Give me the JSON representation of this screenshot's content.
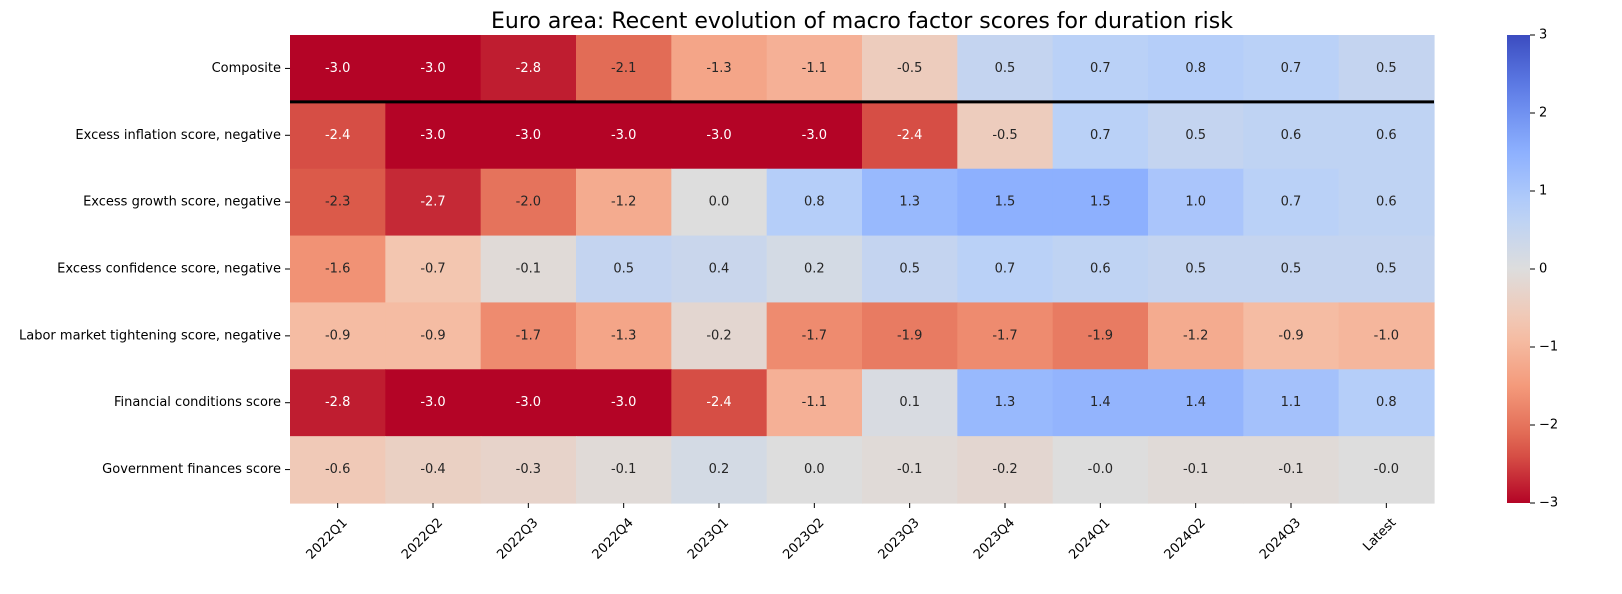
{
  "chart_data": {
    "type": "heatmap",
    "title": "Euro area: Recent evolution of macro factor scores for duration risk",
    "xlabel": "",
    "ylabel": "",
    "x_categories": [
      "2022Q1",
      "2022Q2",
      "2022Q3",
      "2022Q4",
      "2023Q1",
      "2023Q2",
      "2023Q3",
      "2023Q4",
      "2024Q1",
      "2024Q2",
      "2024Q3",
      "Latest"
    ],
    "y_categories": [
      "Composite",
      "Excess inflation score, negative",
      "Excess growth score, negative",
      "Excess confidence score, negative",
      "Labor market tightening score, negative",
      "Financial conditions score",
      "Government finances score"
    ],
    "values": [
      [
        -3.0,
        -3.0,
        -2.8,
        -2.1,
        -1.3,
        -1.1,
        -0.5,
        0.5,
        0.7,
        0.8,
        0.7,
        0.5
      ],
      [
        -2.4,
        -3.0,
        -3.0,
        -3.0,
        -3.0,
        -3.0,
        -2.4,
        -0.5,
        0.7,
        0.5,
        0.6,
        0.6
      ],
      [
        -2.3,
        -2.7,
        -2.0,
        -1.2,
        0.0,
        0.8,
        1.3,
        1.5,
        1.5,
        1.0,
        0.7,
        0.6
      ],
      [
        -1.6,
        -0.7,
        -0.1,
        0.5,
        0.4,
        0.2,
        0.5,
        0.7,
        0.6,
        0.5,
        0.5,
        0.5
      ],
      [
        -0.9,
        -0.9,
        -1.7,
        -1.3,
        -0.2,
        -1.7,
        -1.9,
        -1.7,
        -1.9,
        -1.2,
        -0.9,
        -1.0
      ],
      [
        -2.8,
        -3.0,
        -3.0,
        -3.0,
        -2.4,
        -1.1,
        0.1,
        1.3,
        1.4,
        1.4,
        1.1,
        0.8
      ],
      [
        -0.6,
        -0.4,
        -0.3,
        -0.1,
        0.2,
        0.0,
        -0.1,
        -0.2,
        -0.0,
        -0.1,
        -0.1,
        -0.0
      ]
    ],
    "annotations": [
      [
        "-3.0",
        "-3.0",
        "-2.8",
        "-2.1",
        "-1.3",
        "-1.1",
        "-0.5",
        "0.5",
        "0.7",
        "0.8",
        "0.7",
        "0.5"
      ],
      [
        "-2.4",
        "-3.0",
        "-3.0",
        "-3.0",
        "-3.0",
        "-3.0",
        "-2.4",
        "-0.5",
        "0.7",
        "0.5",
        "0.6",
        "0.6"
      ],
      [
        "-2.3",
        "-2.7",
        "-2.0",
        "-1.2",
        "0.0",
        "0.8",
        "1.3",
        "1.5",
        "1.5",
        "1.0",
        "0.7",
        "0.6"
      ],
      [
        "-1.6",
        "-0.7",
        "-0.1",
        "0.5",
        "0.4",
        "0.2",
        "0.5",
        "0.7",
        "0.6",
        "0.5",
        "0.5",
        "0.5"
      ],
      [
        "-0.9",
        "-0.9",
        "-1.7",
        "-1.3",
        "-0.2",
        "-1.7",
        "-1.9",
        "-1.7",
        "-1.9",
        "-1.2",
        "-0.9",
        "-1.0"
      ],
      [
        "-2.8",
        "-3.0",
        "-3.0",
        "-3.0",
        "-2.4",
        "-1.1",
        "0.1",
        "1.3",
        "1.4",
        "1.4",
        "1.1",
        "0.8"
      ],
      [
        "-0.6",
        "-0.4",
        "-0.3",
        "-0.1",
        "0.2",
        "0.0",
        "-0.1",
        "-0.2",
        "-0.0",
        "-0.1",
        "-0.1",
        "-0.0"
      ]
    ],
    "color_range": [
      -3,
      3
    ],
    "colormap": "coolwarm_r",
    "colorbar_ticks": [
      3,
      2,
      1,
      0,
      -1,
      -2,
      -3
    ],
    "colorbar_tick_labels": [
      "3",
      "2",
      "1",
      "0",
      "−1",
      "−2",
      "−3"
    ],
    "separator_after_row": "Composite",
    "grid": false
  }
}
